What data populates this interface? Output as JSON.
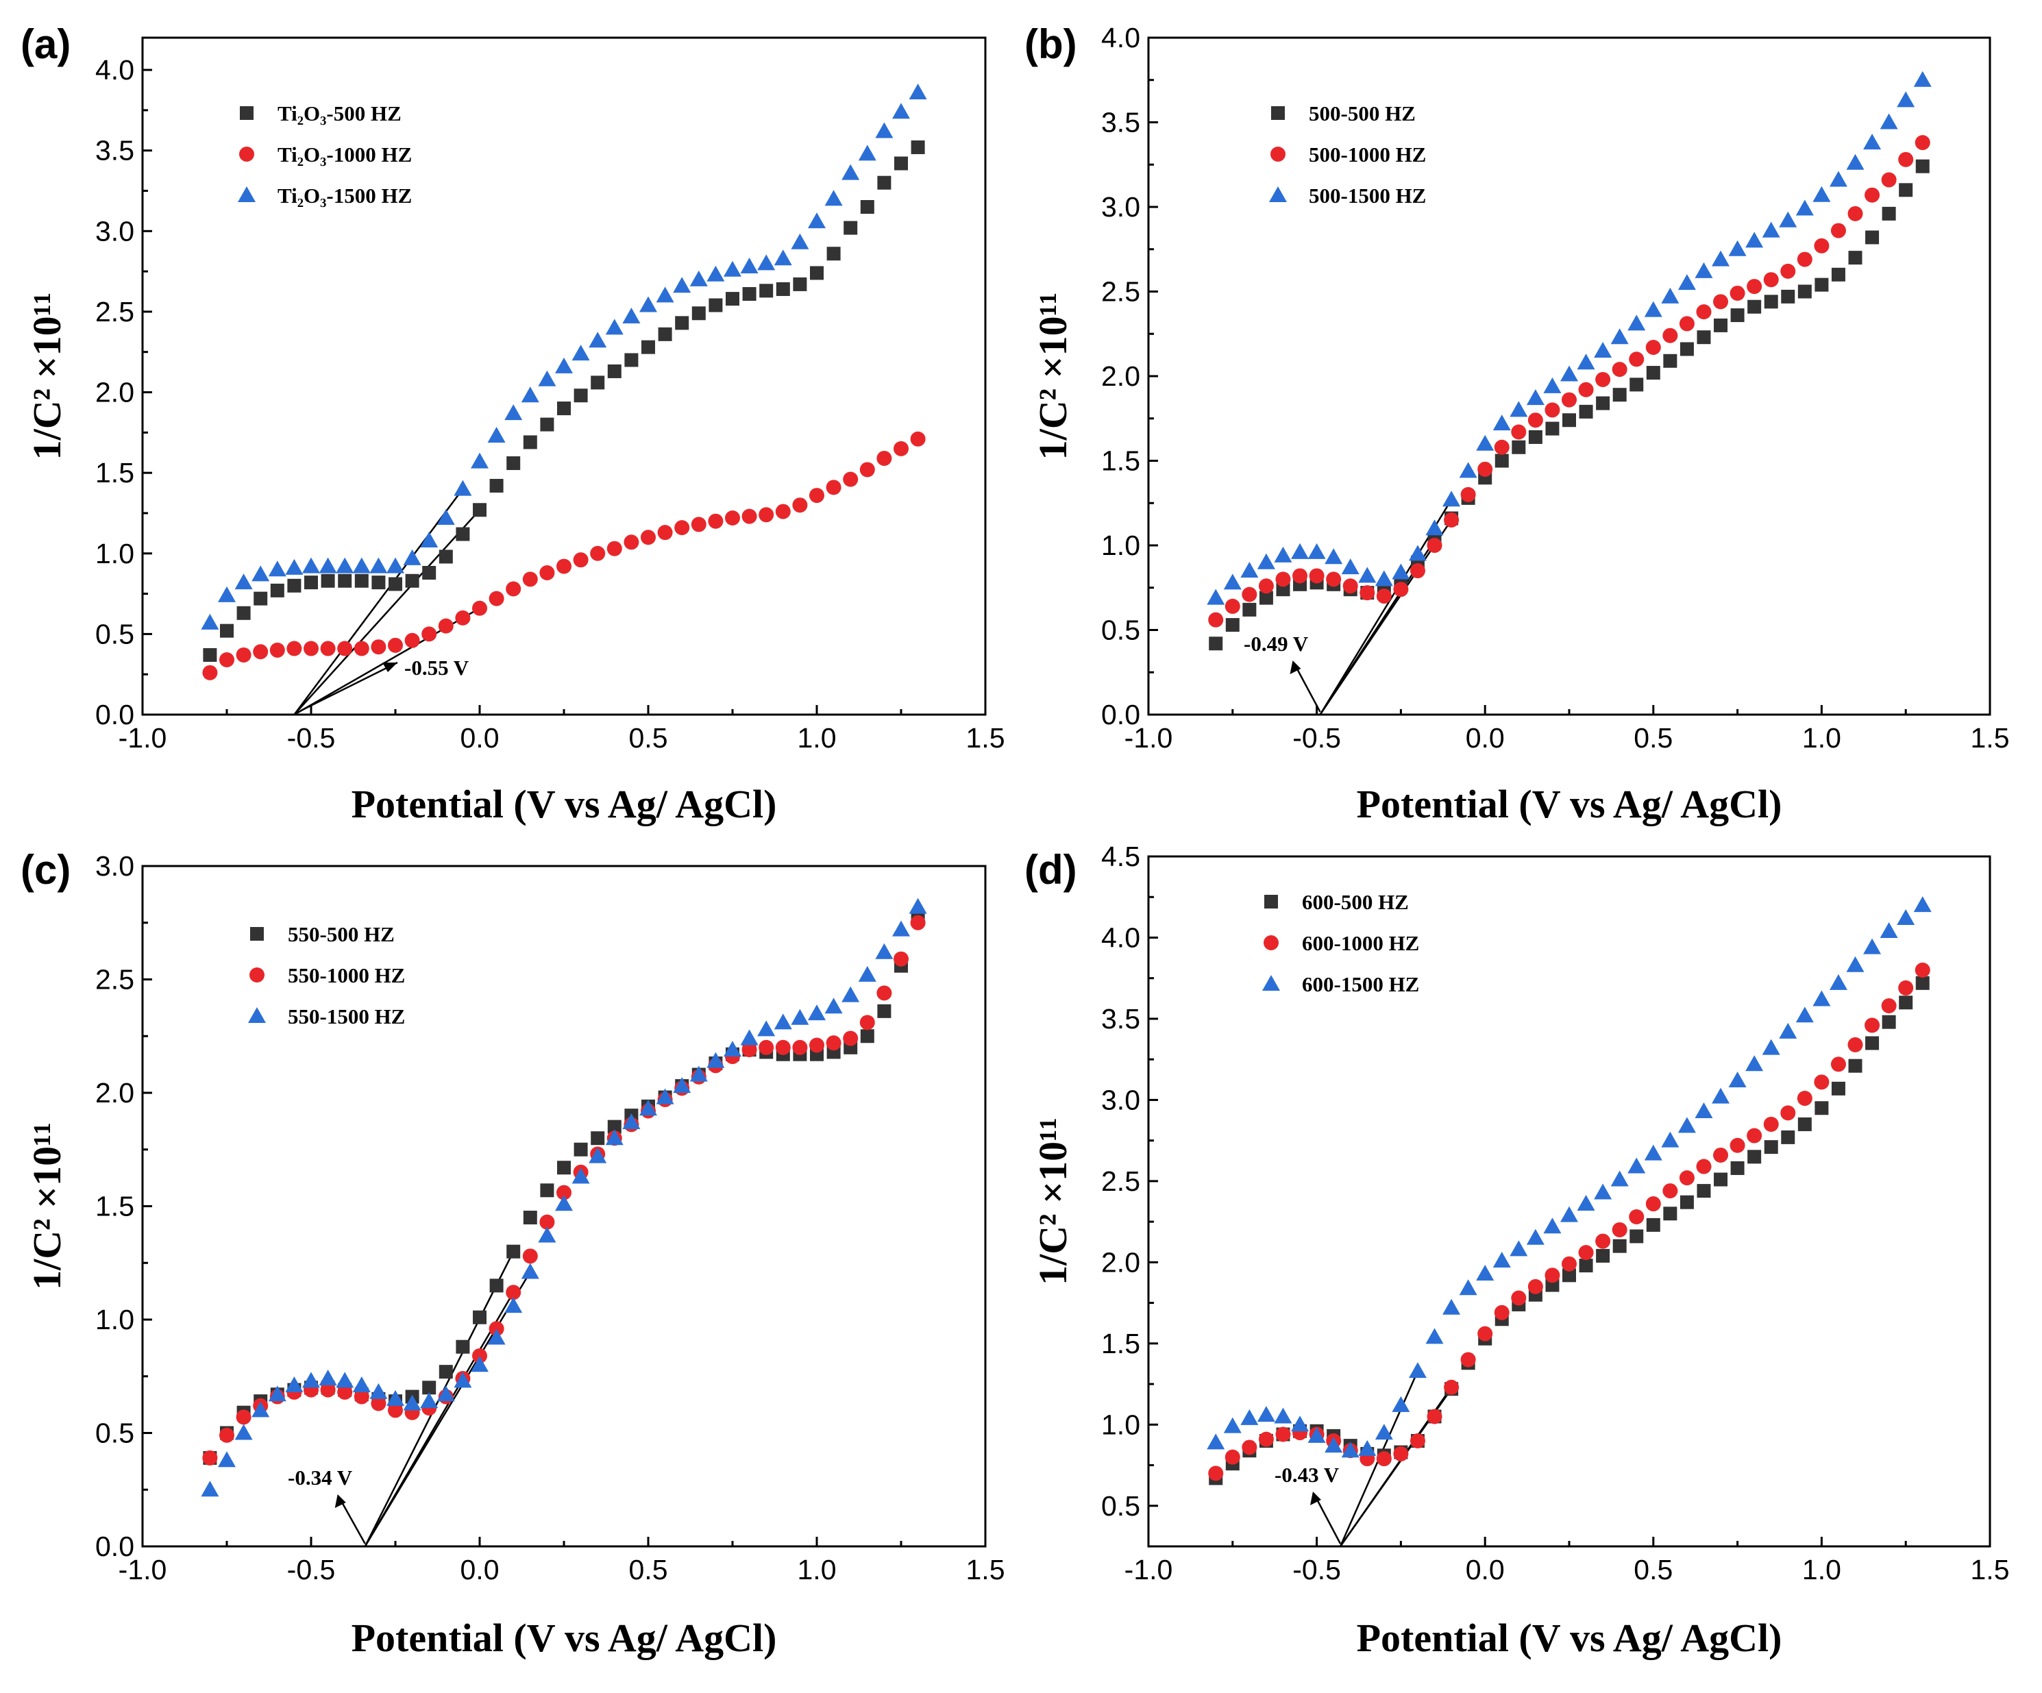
{
  "chart_data": [
    {
      "type": "scatter",
      "panel_label": "(a)",
      "xlabel": "Potential (V vs Ag/ AgCl)",
      "ylabel": "1/C² ×10¹¹",
      "xlim": [
        -1.0,
        1.5
      ],
      "ylim": [
        0.0,
        4.2
      ],
      "xticks": [
        "-1.0",
        "-0.5",
        "0.0",
        "0.5",
        "1.0",
        "1.5"
      ],
      "yticks": [
        "0.0",
        "0.5",
        "1.0",
        "1.5",
        "2.0",
        "2.5",
        "3.0",
        "3.5",
        "4.0"
      ],
      "annotation": "-0.55 V",
      "intercept": -0.55,
      "legend_position": "top-left",
      "series": [
        {
          "name": "Ti₂O₃-500 HZ",
          "marker": "square",
          "color": "#333333",
          "values": [
            0.37,
            0.52,
            0.63,
            0.72,
            0.77,
            0.8,
            0.82,
            0.83,
            0.83,
            0.83,
            0.82,
            0.81,
            0.83,
            0.88,
            0.98,
            1.12,
            1.27,
            1.42,
            1.56,
            1.69,
            1.8,
            1.9,
            1.98,
            2.06,
            2.13,
            2.2,
            2.28,
            2.36,
            2.43,
            2.49,
            2.54,
            2.58,
            2.61,
            2.63,
            2.64,
            2.67,
            2.74,
            2.86,
            3.02,
            3.15,
            3.3,
            3.42,
            3.52
          ]
        },
        {
          "name": "Ti₂O₃-1000 HZ",
          "marker": "circle",
          "color": "#e8262a",
          "values": [
            0.26,
            0.34,
            0.37,
            0.39,
            0.4,
            0.41,
            0.41,
            0.41,
            0.41,
            0.41,
            0.42,
            0.43,
            0.46,
            0.5,
            0.55,
            0.6,
            0.66,
            0.72,
            0.78,
            0.84,
            0.88,
            0.92,
            0.96,
            1.0,
            1.03,
            1.07,
            1.1,
            1.13,
            1.16,
            1.18,
            1.2,
            1.22,
            1.23,
            1.24,
            1.26,
            1.3,
            1.36,
            1.41,
            1.46,
            1.52,
            1.59,
            1.65,
            1.71
          ]
        },
        {
          "name": "Ti₂O₃-1500 HZ",
          "marker": "triangle",
          "color": "#2b6fd6",
          "values": [
            0.57,
            0.74,
            0.82,
            0.87,
            0.9,
            0.91,
            0.92,
            0.92,
            0.92,
            0.92,
            0.92,
            0.92,
            0.97,
            1.08,
            1.22,
            1.4,
            1.57,
            1.73,
            1.87,
            1.98,
            2.08,
            2.16,
            2.24,
            2.32,
            2.4,
            2.47,
            2.54,
            2.6,
            2.66,
            2.7,
            2.73,
            2.76,
            2.78,
            2.8,
            2.83,
            2.93,
            3.06,
            3.2,
            3.36,
            3.48,
            3.62,
            3.74,
            3.86
          ]
        }
      ]
    },
    {
      "type": "scatter",
      "panel_label": "(b)",
      "xlabel": "Potential (V vs Ag/ AgCl)",
      "ylabel": "1/C² ×10¹¹",
      "xlim": [
        -1.0,
        1.5
      ],
      "ylim": [
        0.0,
        4.0
      ],
      "xticks": [
        "-1.0",
        "-0.5",
        "0.0",
        "0.5",
        "1.0",
        "1.5"
      ],
      "yticks": [
        "0.0",
        "0.5",
        "1.0",
        "1.5",
        "2.0",
        "2.5",
        "3.0",
        "3.5",
        "4.0"
      ],
      "annotation": "-0.49 V",
      "intercept": -0.49,
      "legend_position": "top-left",
      "series": [
        {
          "name": "500-500 HZ",
          "marker": "square",
          "color": "#333333",
          "values": [
            0.42,
            0.53,
            0.62,
            0.69,
            0.74,
            0.77,
            0.78,
            0.77,
            0.74,
            0.72,
            0.72,
            0.78,
            0.9,
            1.03,
            1.16,
            1.28,
            1.4,
            1.5,
            1.58,
            1.64,
            1.69,
            1.74,
            1.79,
            1.84,
            1.89,
            1.95,
            2.02,
            2.09,
            2.16,
            2.23,
            2.3,
            2.36,
            2.41,
            2.44,
            2.47,
            2.5,
            2.54,
            2.6,
            2.7,
            2.82,
            2.96,
            3.1,
            3.24
          ]
        },
        {
          "name": "500-1000 HZ",
          "marker": "circle",
          "color": "#e8262a",
          "values": [
            0.56,
            0.64,
            0.71,
            0.76,
            0.8,
            0.82,
            0.82,
            0.8,
            0.76,
            0.72,
            0.7,
            0.74,
            0.85,
            1.0,
            1.15,
            1.3,
            1.45,
            1.58,
            1.67,
            1.74,
            1.8,
            1.86,
            1.92,
            1.98,
            2.04,
            2.1,
            2.17,
            2.24,
            2.31,
            2.38,
            2.44,
            2.49,
            2.53,
            2.57,
            2.62,
            2.69,
            2.77,
            2.86,
            2.96,
            3.07,
            3.16,
            3.28,
            3.38
          ]
        },
        {
          "name": "500-1500 HZ",
          "marker": "triangle",
          "color": "#2b6fd6",
          "values": [
            0.69,
            0.78,
            0.85,
            0.9,
            0.94,
            0.96,
            0.96,
            0.93,
            0.87,
            0.82,
            0.8,
            0.84,
            0.95,
            1.1,
            1.27,
            1.44,
            1.6,
            1.72,
            1.8,
            1.87,
            1.94,
            2.01,
            2.08,
            2.15,
            2.23,
            2.31,
            2.39,
            2.47,
            2.55,
            2.62,
            2.69,
            2.75,
            2.8,
            2.86,
            2.92,
            2.99,
            3.07,
            3.16,
            3.26,
            3.38,
            3.5,
            3.63,
            3.75
          ]
        }
      ]
    },
    {
      "type": "scatter",
      "panel_label": "(c)",
      "xlabel": "Potential (V vs Ag/ AgCl)",
      "ylabel": "1/C² ×10¹¹",
      "xlim": [
        -1.0,
        1.5
      ],
      "ylim": [
        0.0,
        3.0
      ],
      "xticks": [
        "-1.0",
        "-0.5",
        "0.0",
        "0.5",
        "1.0",
        "1.5"
      ],
      "yticks": [
        "0.0",
        "0.5",
        "1.0",
        "1.5",
        "2.0",
        "2.5",
        "3.0"
      ],
      "annotation": "-0.34 V",
      "intercept": -0.34,
      "legend_position": "top-left",
      "series": [
        {
          "name": "550-500 HZ",
          "marker": "square",
          "color": "#333333",
          "values": [
            0.39,
            0.5,
            0.59,
            0.64,
            0.67,
            0.69,
            0.7,
            0.7,
            0.69,
            0.67,
            0.65,
            0.64,
            0.66,
            0.7,
            0.77,
            0.88,
            1.01,
            1.15,
            1.3,
            1.45,
            1.57,
            1.67,
            1.75,
            1.8,
            1.85,
            1.9,
            1.94,
            1.98,
            2.03,
            2.08,
            2.13,
            2.17,
            2.19,
            2.18,
            2.17,
            2.17,
            2.17,
            2.18,
            2.2,
            2.25,
            2.36,
            2.56,
            2.77
          ]
        },
        {
          "name": "550-1000 HZ",
          "marker": "circle",
          "color": "#e8262a",
          "values": [
            0.39,
            0.49,
            0.57,
            0.62,
            0.66,
            0.68,
            0.69,
            0.69,
            0.68,
            0.66,
            0.63,
            0.6,
            0.59,
            0.61,
            0.66,
            0.74,
            0.84,
            0.96,
            1.12,
            1.28,
            1.43,
            1.56,
            1.65,
            1.73,
            1.8,
            1.86,
            1.92,
            1.97,
            2.02,
            2.07,
            2.12,
            2.16,
            2.19,
            2.2,
            2.2,
            2.2,
            2.21,
            2.22,
            2.24,
            2.31,
            2.44,
            2.59,
            2.75
          ]
        },
        {
          "name": "550-1500 HZ",
          "marker": "triangle",
          "color": "#2b6fd6",
          "values": [
            0.25,
            0.38,
            0.5,
            0.6,
            0.67,
            0.71,
            0.73,
            0.74,
            0.73,
            0.71,
            0.68,
            0.65,
            0.63,
            0.64,
            0.67,
            0.73,
            0.8,
            0.92,
            1.06,
            1.21,
            1.37,
            1.51,
            1.63,
            1.72,
            1.8,
            1.87,
            1.93,
            1.98,
            2.03,
            2.08,
            2.14,
            2.19,
            2.24,
            2.28,
            2.31,
            2.33,
            2.35,
            2.38,
            2.43,
            2.52,
            2.62,
            2.72,
            2.82
          ]
        }
      ]
    },
    {
      "type": "scatter",
      "panel_label": "(d)",
      "xlabel": "Potential (V vs Ag/ AgCl)",
      "ylabel": "1/C² ×10¹¹",
      "xlim": [
        -1.0,
        1.5
      ],
      "ylim": [
        0.25,
        4.5
      ],
      "xticks": [
        "-1.0",
        "-0.5",
        "0.0",
        "0.5",
        "1.0",
        "1.5"
      ],
      "yticks": [
        "0.5",
        "1.0",
        "1.5",
        "2.0",
        "2.5",
        "3.0",
        "3.5",
        "4.0",
        "4.5"
      ],
      "annotation": "-0.43 V",
      "intercept": -0.43,
      "legend_position": "top-left",
      "series": [
        {
          "name": "600-500 HZ",
          "marker": "square",
          "color": "#333333",
          "values": [
            0.67,
            0.76,
            0.84,
            0.9,
            0.94,
            0.96,
            0.96,
            0.93,
            0.87,
            0.82,
            0.81,
            0.83,
            0.9,
            1.05,
            1.22,
            1.38,
            1.53,
            1.65,
            1.74,
            1.8,
            1.86,
            1.92,
            1.98,
            2.04,
            2.1,
            2.16,
            2.23,
            2.3,
            2.37,
            2.44,
            2.51,
            2.58,
            2.65,
            2.71,
            2.77,
            2.85,
            2.95,
            3.07,
            3.21,
            3.35,
            3.48,
            3.6,
            3.72
          ]
        },
        {
          "name": "600-1000 HZ",
          "marker": "circle",
          "color": "#e8262a",
          "values": [
            0.7,
            0.8,
            0.86,
            0.91,
            0.94,
            0.95,
            0.94,
            0.9,
            0.84,
            0.79,
            0.79,
            0.82,
            0.9,
            1.05,
            1.23,
            1.4,
            1.56,
            1.69,
            1.78,
            1.85,
            1.92,
            1.99,
            2.06,
            2.13,
            2.2,
            2.28,
            2.36,
            2.44,
            2.52,
            2.59,
            2.66,
            2.72,
            2.78,
            2.85,
            2.92,
            3.01,
            3.11,
            3.22,
            3.34,
            3.46,
            3.58,
            3.69,
            3.8
          ]
        },
        {
          "name": "600-1500 HZ",
          "marker": "triangle",
          "color": "#2b6fd6",
          "values": [
            0.89,
            0.99,
            1.04,
            1.06,
            1.05,
            1.0,
            0.93,
            0.87,
            0.84,
            0.85,
            0.95,
            1.12,
            1.33,
            1.54,
            1.72,
            1.84,
            1.93,
            2.01,
            2.08,
            2.15,
            2.22,
            2.29,
            2.36,
            2.43,
            2.51,
            2.59,
            2.67,
            2.75,
            2.84,
            2.93,
            3.02,
            3.12,
            3.22,
            3.32,
            3.42,
            3.52,
            3.62,
            3.72,
            3.83,
            3.94,
            4.04,
            4.12,
            4.2
          ]
        }
      ]
    }
  ]
}
